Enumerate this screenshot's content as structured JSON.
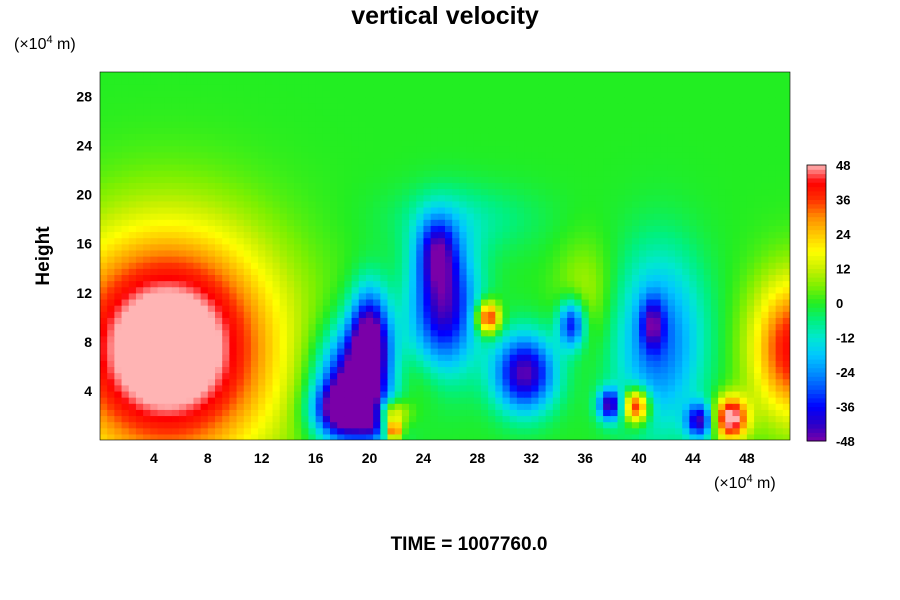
{
  "chart_data": {
    "type": "heatmap",
    "title": "vertical velocity",
    "ylabel": "Height",
    "xlabel": "",
    "x_unit": {
      "prefix": "(×10",
      "exp": "4",
      "suffix": " m)"
    },
    "y_unit": {
      "prefix": "(×10",
      "exp": "4",
      "suffix": " m)"
    },
    "xlim": [
      0,
      51.2
    ],
    "ylim": [
      0,
      30
    ],
    "x_ticks": [
      4,
      8,
      12,
      16,
      20,
      24,
      28,
      32,
      36,
      40,
      44,
      48
    ],
    "y_ticks": [
      4,
      8,
      12,
      16,
      20,
      24,
      28
    ],
    "colorbar": {
      "min": -48,
      "max": 48,
      "ticks": [
        48,
        36,
        24,
        12,
        0,
        -12,
        -24,
        -36,
        -48
      ],
      "stops": [
        {
          "value": -48,
          "color": "#7a00a8"
        },
        {
          "value": -42,
          "color": "#2a00c8"
        },
        {
          "value": -36,
          "color": "#0000ff"
        },
        {
          "value": -30,
          "color": "#0050ff"
        },
        {
          "value": -24,
          "color": "#0090ff"
        },
        {
          "value": -18,
          "color": "#00c8ff"
        },
        {
          "value": -12,
          "color": "#00e8d0"
        },
        {
          "value": -6,
          "color": "#00f080"
        },
        {
          "value": 0,
          "color": "#22ee22"
        },
        {
          "value": 6,
          "color": "#7ef000"
        },
        {
          "value": 12,
          "color": "#c8f000"
        },
        {
          "value": 18,
          "color": "#ffff00"
        },
        {
          "value": 24,
          "color": "#ffc800"
        },
        {
          "value": 30,
          "color": "#ff8c00"
        },
        {
          "value": 36,
          "color": "#ff3000"
        },
        {
          "value": 42,
          "color": "#ff0000"
        },
        {
          "value": 48,
          "color": "#ffb4b4"
        }
      ]
    },
    "field": {
      "background": 0,
      "features": [
        {
          "x": 5,
          "y": 7.5,
          "sx": 5.5,
          "sy": 6.5,
          "amp": 62
        },
        {
          "x": 51.5,
          "y": 7.5,
          "sx": 2.2,
          "sy": 4.0,
          "amp": 42
        },
        {
          "x": 19,
          "y": 4.5,
          "sx": 2.0,
          "sy": 3.2,
          "amp": -52
        },
        {
          "x": 20,
          "y": 8.5,
          "sx": 1.0,
          "sy": 2.8,
          "amp": -44
        },
        {
          "x": 18,
          "y": 2.5,
          "sx": 1.5,
          "sy": 1.5,
          "amp": -38
        },
        {
          "x": 25.5,
          "y": 11,
          "sx": 1.7,
          "sy": 3.8,
          "amp": -44
        },
        {
          "x": 25,
          "y": 15.5,
          "sx": 1.0,
          "sy": 2.0,
          "amp": -26
        },
        {
          "x": 28.8,
          "y": 10,
          "sx": 0.6,
          "sy": 0.9,
          "amp": 45
        },
        {
          "x": 31.5,
          "y": 5.5,
          "sx": 1.6,
          "sy": 2.2,
          "amp": -46
        },
        {
          "x": 35,
          "y": 9.5,
          "sx": 0.7,
          "sy": 1.4,
          "amp": -38
        },
        {
          "x": 41.5,
          "y": 8,
          "sx": 2.3,
          "sy": 5.0,
          "amp": -28
        },
        {
          "x": 41,
          "y": 9.5,
          "sx": 0.6,
          "sy": 1.5,
          "amp": -24
        },
        {
          "x": 37.8,
          "y": 2.9,
          "sx": 0.6,
          "sy": 0.9,
          "amp": -42
        },
        {
          "x": 39.8,
          "y": 2.8,
          "sx": 0.65,
          "sy": 0.95,
          "amp": 48
        },
        {
          "x": 44.5,
          "y": 1.6,
          "sx": 0.7,
          "sy": 1.0,
          "amp": -40
        },
        {
          "x": 46.8,
          "y": 1.8,
          "sx": 0.85,
          "sy": 1.2,
          "amp": 52
        },
        {
          "x": 21.5,
          "y": 2.2,
          "sx": 0.9,
          "sy": 0.8,
          "amp": 30
        },
        {
          "x": 21.8,
          "y": 0.8,
          "sx": 0.4,
          "sy": 0.5,
          "amp": 42
        },
        {
          "x": 20.2,
          "y": 1.7,
          "sx": 0.6,
          "sy": 1.0,
          "amp": -22
        },
        {
          "x": 27,
          "y": 18,
          "sx": 4.0,
          "sy": 2.0,
          "amp": -8
        },
        {
          "x": 23,
          "y": 5,
          "sx": 2.0,
          "sy": 2.0,
          "amp": 8
        },
        {
          "x": 36,
          "y": 12,
          "sx": 1.5,
          "sy": 3.0,
          "amp": 10
        }
      ]
    }
  },
  "footer": {
    "text": "TIME = 1007760.0"
  }
}
